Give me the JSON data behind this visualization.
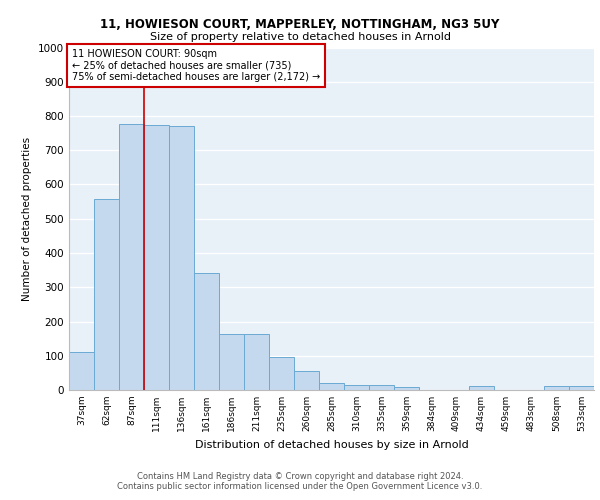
{
  "title1": "11, HOWIESON COURT, MAPPERLEY, NOTTINGHAM, NG3 5UY",
  "title2": "Size of property relative to detached houses in Arnold",
  "xlabel": "Distribution of detached houses by size in Arnold",
  "ylabel": "Number of detached properties",
  "categories": [
    "37sqm",
    "62sqm",
    "87sqm",
    "111sqm",
    "136sqm",
    "161sqm",
    "186sqm",
    "211sqm",
    "235sqm",
    "260sqm",
    "285sqm",
    "310sqm",
    "335sqm",
    "359sqm",
    "384sqm",
    "409sqm",
    "434sqm",
    "459sqm",
    "483sqm",
    "508sqm",
    "533sqm"
  ],
  "values": [
    112,
    558,
    778,
    775,
    770,
    343,
    163,
    163,
    97,
    55,
    20,
    15,
    15,
    10,
    0,
    0,
    12,
    0,
    0,
    12,
    12
  ],
  "bar_color": "#c5d9ee",
  "bar_edge_color": "#6aaad4",
  "annotation_text": "11 HOWIESON COURT: 90sqm\n← 25% of detached houses are smaller (735)\n75% of semi-detached houses are larger (2,172) →",
  "annotation_box_color": "#ffffff",
  "annotation_box_edge_color": "#cc0000",
  "ylim": [
    0,
    1000
  ],
  "yticks": [
    0,
    100,
    200,
    300,
    400,
    500,
    600,
    700,
    800,
    900,
    1000
  ],
  "footer1": "Contains HM Land Registry data © Crown copyright and database right 2024.",
  "footer2": "Contains public sector information licensed under the Open Government Licence v3.0.",
  "bg_color": "#e8f0f8",
  "grid_color": "#ffffff",
  "vline_position": 2.5
}
